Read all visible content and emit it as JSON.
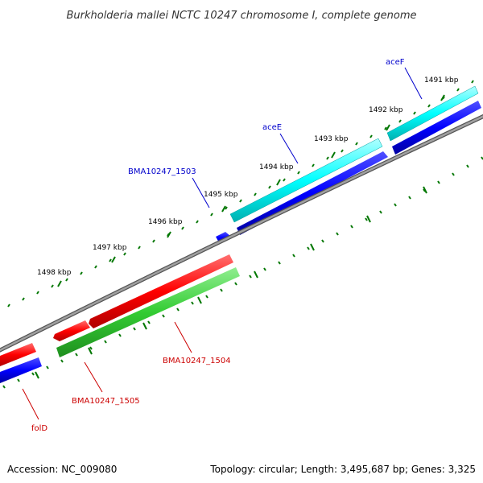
{
  "title": "Burkholderia mallei NCTC 10247 chromosome I, complete genome",
  "footer": {
    "accession": "Accession: NC_009080",
    "topology": "Topology: circular; Length: 3,495,687 bp; Genes: 3,325"
  },
  "ticks": [
    {
      "kbp": 1491,
      "label": "1491 kbp"
    },
    {
      "kbp": 1492,
      "label": "1492 kbp"
    },
    {
      "kbp": 1493,
      "label": "1493 kbp"
    },
    {
      "kbp": 1494,
      "label": "1494 kbp"
    },
    {
      "kbp": 1495,
      "label": "1495 kbp"
    },
    {
      "kbp": 1496,
      "label": "1496 kbp"
    },
    {
      "kbp": 1497,
      "label": "1497 kbp"
    },
    {
      "kbp": 1498,
      "label": "1498 kbp"
    }
  ],
  "genes": [
    {
      "name": "aceF",
      "label_color": "#0000cc",
      "fill": "#00ffff",
      "strand": "outer-top"
    },
    {
      "name": "aceE",
      "label_color": "#0000cc",
      "fill": "#00ffff",
      "strand": "outer-top"
    },
    {
      "name": "BMA10247_1503",
      "label_color": "#0000cc",
      "fill": "#0000ff",
      "strand": "outer"
    },
    {
      "name": "BMA10247_1504",
      "label_color": "#cc0000",
      "fill": "#ff0000",
      "strand": "inner"
    },
    {
      "name": "BMA10247_1505",
      "label_color": "#cc0000",
      "fill": "#ff0000",
      "strand": "inner"
    },
    {
      "name": "folD",
      "label_color": "#cc0000",
      "fill": "#ff0000",
      "strand": "inner"
    }
  ],
  "colors": {
    "backbone": "#808080",
    "ticks": "#007700",
    "cds_forward": "#0000ff",
    "rna_forward": "#00ffff",
    "cds_reverse": "#ff0000",
    "rna_reverse": "#33cc33"
  }
}
